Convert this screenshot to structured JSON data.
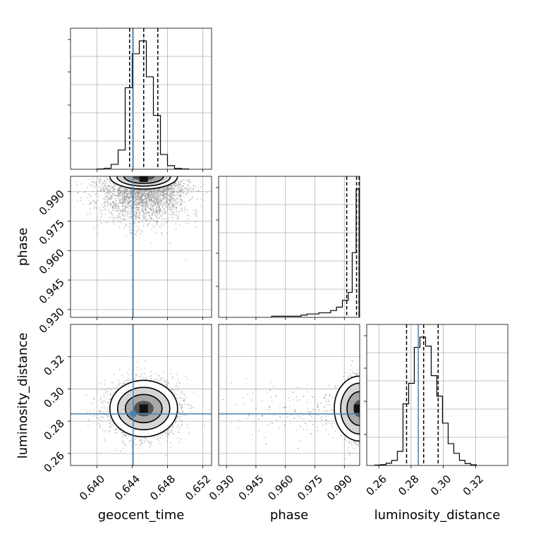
{
  "chart_data": {
    "type": "corner",
    "parameters": [
      "geocent_time",
      "phase",
      "luminosity_distance"
    ],
    "truths": {
      "geocent_time": 0.6441,
      "phase": null,
      "luminosity_distance": 0.2845
    },
    "truth_color": "#4682b4",
    "axis_ranges": {
      "geocent_time": [
        0.637,
        0.653
      ],
      "phase": [
        0.926,
        0.9978
      ],
      "luminosity_distance": [
        0.2525,
        0.34
      ]
    },
    "ticks": {
      "geocent_time": {
        "values": [
          0.64,
          0.644,
          0.648,
          0.652
        ],
        "labels": [
          "0.640",
          "0.644",
          "0.648",
          "0.652"
        ]
      },
      "phase": {
        "values": [
          0.93,
          0.945,
          0.96,
          0.975,
          0.99
        ],
        "labels": [
          "0.930",
          "0.945",
          "0.960",
          "0.975",
          "0.990"
        ]
      },
      "luminosity_distance": {
        "values": [
          0.26,
          0.28,
          0.3,
          0.32
        ],
        "labels": [
          "0.26",
          "0.28",
          "0.30",
          "0.32"
        ]
      }
    },
    "quantiles": {
      "geocent_time": [
        0.6437,
        0.6453,
        0.6469
      ],
      "phase": [
        0.9912,
        0.9962,
        0.9975
      ],
      "luminosity_distance": [
        0.2772,
        0.2878,
        0.2968
      ]
    },
    "histograms": {
      "geocent_time": {
        "edges": [
          0.64,
          0.6408,
          0.6416,
          0.6424,
          0.6432,
          0.644,
          0.6448,
          0.6456,
          0.6464,
          0.6472,
          0.648,
          0.6488,
          0.6496,
          0.6504
        ],
        "counts": [
          2,
          8,
          38,
          150,
          635,
          900,
          1000,
          720,
          420,
          115,
          28,
          6,
          2
        ]
      },
      "phase": {
        "edges": [
          0.953,
          0.956,
          0.959,
          0.962,
          0.965,
          0.968,
          0.971,
          0.974,
          0.977,
          0.98,
          0.983,
          0.986,
          0.989,
          0.992,
          0.994,
          0.996,
          0.997,
          0.9975
        ],
        "counts": [
          1,
          1,
          1,
          1,
          1,
          2,
          3,
          3,
          4,
          4,
          6,
          9,
          15,
          22,
          57,
          113,
          113
        ]
      },
      "luminosity_distance": {
        "edges": [
          0.2575,
          0.261,
          0.2645,
          0.268,
          0.2715,
          0.275,
          0.2785,
          0.282,
          0.2855,
          0.289,
          0.2925,
          0.296,
          0.2995,
          0.303,
          0.3065,
          0.31,
          0.3135,
          0.317,
          0.3205
        ],
        "counts": [
          3,
          6,
          18,
          40,
          110,
          480,
          640,
          920,
          1000,
          930,
          700,
          540,
          330,
          170,
          95,
          40,
          15,
          5
        ]
      }
    },
    "contours_2d": {
      "geocent_time__phase": {
        "center": [
          0.6453,
          0.9975
        ]
      },
      "geocent_time__luminosity_distance": {
        "center": [
          0.6453,
          0.2878
        ]
      },
      "phase__luminosity_distance": {
        "center": [
          0.9975,
          0.2878
        ]
      }
    },
    "grid": true
  }
}
